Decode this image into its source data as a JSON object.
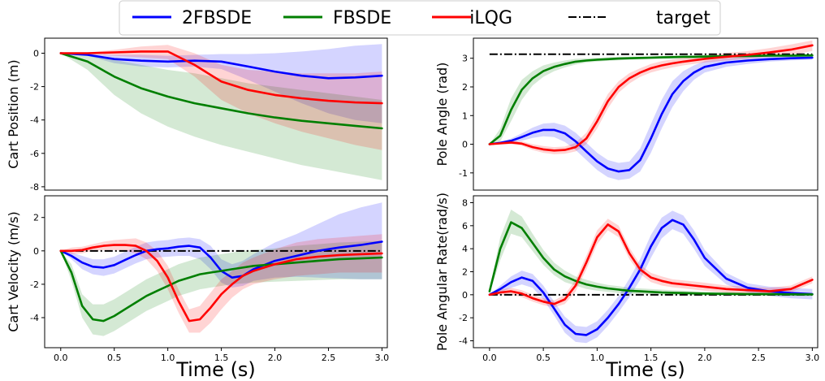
{
  "legend": {
    "placement": "top-center",
    "entries": [
      {
        "label": "2FBSDE",
        "color": "#0000ff",
        "dash": "solid"
      },
      {
        "label": "FBSDE",
        "color": "#007f00",
        "dash": "solid"
      },
      {
        "label": "iLQG",
        "color": "#ff0000",
        "dash": "solid"
      },
      {
        "label": "target",
        "color": "#000000",
        "dash": "dashdot"
      }
    ]
  },
  "colors": {
    "2FBSDE": "#0000ff",
    "FBSDE": "#007f00",
    "iLQG": "#ff0000",
    "target": "#000000"
  },
  "chart_data": [
    {
      "type": "line",
      "id": "cart_position",
      "ylabel": "Cart Position (m)",
      "xlabel": "",
      "xlim": [
        -0.15,
        3.05
      ],
      "ylim": [
        -8.2,
        0.9
      ],
      "xticks": [],
      "yticks": [
        0,
        -2,
        -4,
        -6,
        -8
      ],
      "x": [
        0,
        0.25,
        0.5,
        0.75,
        1.0,
        1.25,
        1.5,
        1.75,
        2.0,
        2.25,
        2.5,
        2.75,
        3.0
      ],
      "series": [
        {
          "name": "2FBSDE",
          "values": [
            0,
            -0.1,
            -0.35,
            -0.45,
            -0.5,
            -0.45,
            -0.5,
            -0.8,
            -1.1,
            -1.35,
            -1.5,
            -1.45,
            -1.35
          ],
          "lower": [
            0,
            -0.15,
            -0.6,
            -0.8,
            -0.85,
            -0.8,
            -0.95,
            -1.6,
            -2.3,
            -3.0,
            -3.6,
            -4.0,
            -4.2
          ],
          "upper": [
            0,
            -0.05,
            -0.1,
            -0.1,
            -0.15,
            -0.1,
            -0.05,
            -0.05,
            0,
            0.1,
            0.25,
            0.45,
            0.55
          ]
        },
        {
          "name": "FBSDE",
          "values": [
            0,
            -0.5,
            -1.4,
            -2.1,
            -2.6,
            -3.0,
            -3.3,
            -3.6,
            -3.85,
            -4.05,
            -4.2,
            -4.35,
            -4.5
          ],
          "lower": [
            0,
            -1.0,
            -2.5,
            -3.6,
            -4.4,
            -5.0,
            -5.5,
            -5.9,
            -6.3,
            -6.7,
            -7.0,
            -7.3,
            -7.6
          ],
          "upper": [
            0,
            -0.1,
            -0.4,
            -0.7,
            -1.0,
            -1.2,
            -1.5,
            -1.8,
            -2.0,
            -2.2,
            -2.4,
            -2.6,
            -2.8
          ]
        },
        {
          "name": "iLQG",
          "values": [
            0,
            0,
            0.05,
            0.1,
            0.1,
            -0.7,
            -1.7,
            -2.2,
            -2.5,
            -2.7,
            -2.85,
            -2.95,
            -3.0
          ],
          "lower": [
            0,
            -0.05,
            -0.15,
            -0.25,
            -0.35,
            -1.4,
            -2.8,
            -3.6,
            -4.2,
            -4.7,
            -5.1,
            -5.5,
            -5.8
          ],
          "upper": [
            0,
            0.05,
            0.2,
            0.4,
            0.5,
            0.0,
            -0.7,
            -1.0,
            -1.1,
            -1.2,
            -1.2,
            -1.2,
            -1.1
          ]
        }
      ],
      "hline": null
    },
    {
      "type": "line",
      "id": "pole_angle",
      "ylabel": "Pole Angle (rad)",
      "xlabel": "",
      "xlim": [
        -0.15,
        3.05
      ],
      "ylim": [
        -1.6,
        3.7
      ],
      "xticks": [],
      "yticks": [
        -1,
        0,
        1,
        2,
        3
      ],
      "x": [
        0,
        0.1,
        0.2,
        0.3,
        0.4,
        0.5,
        0.6,
        0.7,
        0.8,
        0.9,
        1.0,
        1.1,
        1.2,
        1.3,
        1.4,
        1.5,
        1.6,
        1.7,
        1.8,
        1.9,
        2.0,
        2.2,
        2.4,
        2.6,
        2.8,
        3.0
      ],
      "series": [
        {
          "name": "2FBSDE",
          "values": [
            0,
            0.05,
            0.12,
            0.25,
            0.4,
            0.5,
            0.5,
            0.38,
            0.1,
            -0.25,
            -0.6,
            -0.85,
            -0.95,
            -0.9,
            -0.55,
            0.2,
            1.05,
            1.75,
            2.2,
            2.5,
            2.7,
            2.85,
            2.92,
            2.97,
            3.0,
            3.02
          ],
          "lower": [
            0,
            0.02,
            0.05,
            0.12,
            0.22,
            0.28,
            0.25,
            0.08,
            -0.2,
            -0.55,
            -0.9,
            -1.15,
            -1.25,
            -1.2,
            -0.95,
            -0.3,
            0.55,
            1.3,
            1.85,
            2.25,
            2.5,
            2.7,
            2.8,
            2.88,
            2.92,
            2.95
          ],
          "upper": [
            0,
            0.08,
            0.2,
            0.38,
            0.58,
            0.72,
            0.75,
            0.65,
            0.4,
            0.05,
            -0.3,
            -0.55,
            -0.65,
            -0.6,
            -0.15,
            0.7,
            1.55,
            2.2,
            2.55,
            2.75,
            2.9,
            3.0,
            3.05,
            3.07,
            3.08,
            3.08
          ]
        },
        {
          "name": "FBSDE",
          "values": [
            0,
            0.3,
            1.2,
            1.9,
            2.3,
            2.55,
            2.7,
            2.8,
            2.88,
            2.92,
            2.95,
            2.97,
            2.99,
            3.0,
            3.01,
            3.02,
            3.03,
            3.04,
            3.05,
            3.05,
            3.06,
            3.07,
            3.08,
            3.09,
            3.09,
            3.1
          ],
          "lower": [
            0,
            0.1,
            0.8,
            1.55,
            2.05,
            2.35,
            2.55,
            2.68,
            2.78,
            2.85,
            2.88,
            2.91,
            2.93,
            2.95,
            2.96,
            2.97,
            2.98,
            2.99,
            3.0,
            3.0,
            3.01,
            3.02,
            3.03,
            3.04,
            3.04,
            3.05
          ],
          "upper": [
            0,
            0.55,
            1.6,
            2.25,
            2.55,
            2.75,
            2.85,
            2.92,
            2.98,
            3.0,
            3.02,
            3.03,
            3.05,
            3.05,
            3.06,
            3.07,
            3.08,
            3.09,
            3.1,
            3.1,
            3.11,
            3.12,
            3.13,
            3.14,
            3.14,
            3.15
          ]
        },
        {
          "name": "iLQG",
          "values": [
            0,
            0.03,
            0.06,
            0.02,
            -0.1,
            -0.18,
            -0.22,
            -0.2,
            -0.1,
            0.2,
            0.8,
            1.5,
            2.0,
            2.3,
            2.5,
            2.65,
            2.75,
            2.82,
            2.88,
            2.93,
            2.98,
            3.05,
            3.12,
            3.2,
            3.3,
            3.45
          ],
          "lower": [
            0,
            0.0,
            0.0,
            -0.05,
            -0.2,
            -0.3,
            -0.35,
            -0.33,
            -0.25,
            0.0,
            0.55,
            1.25,
            1.8,
            2.12,
            2.35,
            2.5,
            2.6,
            2.68,
            2.75,
            2.8,
            2.85,
            2.92,
            2.98,
            3.05,
            3.12,
            3.25
          ],
          "upper": [
            0,
            0.06,
            0.12,
            0.1,
            0.0,
            -0.06,
            -0.1,
            -0.08,
            0.05,
            0.4,
            1.05,
            1.75,
            2.2,
            2.48,
            2.65,
            2.8,
            2.9,
            2.96,
            3.01,
            3.06,
            3.1,
            3.18,
            3.25,
            3.35,
            3.48,
            3.62
          ]
        }
      ],
      "hline": {
        "name": "target",
        "y": 3.14159
      }
    },
    {
      "type": "line",
      "id": "cart_velocity",
      "ylabel": "Cart Velocity (m/s)",
      "xlabel": "Time (s)",
      "xlim": [
        -0.15,
        3.05
      ],
      "ylim": [
        -5.8,
        3.3
      ],
      "xticks": [
        0.0,
        0.5,
        1.0,
        1.5,
        2.0,
        2.5,
        3.0
      ],
      "yticks": [
        2,
        0,
        -2,
        -4
      ],
      "x": [
        0,
        0.1,
        0.2,
        0.3,
        0.4,
        0.5,
        0.6,
        0.7,
        0.8,
        0.9,
        1.0,
        1.1,
        1.2,
        1.3,
        1.4,
        1.5,
        1.6,
        1.7,
        1.8,
        2.0,
        2.2,
        2.4,
        2.6,
        2.8,
        3.0
      ],
      "series": [
        {
          "name": "2FBSDE",
          "values": [
            0,
            -0.3,
            -0.7,
            -0.95,
            -1.0,
            -0.85,
            -0.55,
            -0.25,
            0.0,
            0.1,
            0.15,
            0.25,
            0.3,
            0.2,
            -0.4,
            -1.2,
            -1.6,
            -1.5,
            -1.1,
            -0.6,
            -0.3,
            0.0,
            0.2,
            0.35,
            0.55
          ],
          "lower": [
            0,
            -0.5,
            -1.1,
            -1.4,
            -1.5,
            -1.35,
            -1.05,
            -0.75,
            -0.5,
            -0.4,
            -0.35,
            -0.3,
            -0.3,
            -0.5,
            -1.1,
            -1.9,
            -2.2,
            -2.1,
            -1.8,
            -1.6,
            -1.55,
            -1.6,
            -1.65,
            -1.7,
            -1.7
          ],
          "upper": [
            0,
            -0.1,
            -0.3,
            -0.5,
            -0.5,
            -0.35,
            -0.05,
            0.25,
            0.5,
            0.6,
            0.65,
            0.75,
            0.8,
            0.7,
            0.3,
            -0.5,
            -0.8,
            -0.6,
            -0.2,
            0.5,
            1.0,
            1.6,
            2.2,
            2.6,
            2.9
          ]
        },
        {
          "name": "FBSDE",
          "values": [
            0,
            -1.3,
            -3.3,
            -4.1,
            -4.2,
            -3.9,
            -3.5,
            -3.1,
            -2.7,
            -2.4,
            -2.1,
            -1.8,
            -1.6,
            -1.4,
            -1.3,
            -1.2,
            -1.1,
            -1.0,
            -0.9,
            -0.8,
            -0.7,
            -0.6,
            -0.5,
            -0.45,
            -0.4
          ],
          "lower": [
            0,
            -1.8,
            -4.0,
            -5.0,
            -5.1,
            -4.8,
            -4.4,
            -4.0,
            -3.6,
            -3.3,
            -3.0,
            -2.7,
            -2.5,
            -2.3,
            -2.2,
            -2.1,
            -2.0,
            -1.95,
            -1.9,
            -1.85,
            -1.8,
            -1.75,
            -1.7,
            -1.7,
            -1.7
          ],
          "upper": [
            0,
            -0.8,
            -2.6,
            -3.2,
            -3.2,
            -2.9,
            -2.5,
            -2.1,
            -1.7,
            -1.4,
            -1.1,
            -0.8,
            -0.6,
            -0.4,
            -0.3,
            -0.2,
            -0.1,
            0.0,
            0.05,
            0.15,
            0.3,
            0.4,
            0.5,
            0.55,
            0.6
          ]
        },
        {
          "name": "iLQG",
          "values": [
            0,
            0.0,
            0.05,
            0.2,
            0.3,
            0.35,
            0.35,
            0.3,
            0.0,
            -0.6,
            -1.6,
            -3.0,
            -4.2,
            -4.1,
            -3.4,
            -2.6,
            -2.0,
            -1.5,
            -1.2,
            -0.8,
            -0.5,
            -0.35,
            -0.25,
            -0.2,
            -0.15
          ],
          "lower": [
            0,
            -0.2,
            -0.15,
            0.0,
            0.05,
            0.05,
            0.0,
            -0.15,
            -0.5,
            -1.2,
            -2.3,
            -3.7,
            -4.9,
            -4.9,
            -4.3,
            -3.5,
            -2.8,
            -2.3,
            -2.0,
            -1.7,
            -1.5,
            -1.4,
            -1.3,
            -1.3,
            -1.3
          ],
          "upper": [
            0,
            0.2,
            0.25,
            0.4,
            0.55,
            0.65,
            0.7,
            0.75,
            0.5,
            0.0,
            -0.9,
            -2.3,
            -3.5,
            -3.3,
            -2.5,
            -1.7,
            -1.2,
            -0.7,
            -0.4,
            0.1,
            0.5,
            0.7,
            0.8,
            0.9,
            1.0
          ]
        }
      ],
      "hline": {
        "name": "target",
        "y": 0
      }
    },
    {
      "type": "line",
      "id": "pole_angular_rate",
      "ylabel": "Pole Angular Rate(rad/s)",
      "xlabel": "Time (s)",
      "xlim": [
        -0.15,
        3.05
      ],
      "ylim": [
        -4.6,
        8.6
      ],
      "xticks": [
        0.0,
        0.5,
        1.0,
        1.5,
        2.0,
        2.5,
        3.0
      ],
      "yticks": [
        8,
        6,
        4,
        2,
        0,
        -2,
        -4
      ],
      "x": [
        0,
        0.1,
        0.2,
        0.3,
        0.4,
        0.5,
        0.6,
        0.7,
        0.8,
        0.9,
        1.0,
        1.1,
        1.2,
        1.3,
        1.4,
        1.5,
        1.6,
        1.7,
        1.8,
        1.9,
        2.0,
        2.2,
        2.4,
        2.6,
        2.8,
        3.0
      ],
      "series": [
        {
          "name": "2FBSDE",
          "values": [
            0,
            0.5,
            1.1,
            1.5,
            1.2,
            0.2,
            -1.2,
            -2.6,
            -3.4,
            -3.5,
            -3.0,
            -2.0,
            -0.8,
            0.6,
            2.2,
            4.2,
            5.8,
            6.5,
            6.1,
            4.8,
            3.2,
            1.4,
            0.6,
            0.3,
            0.15,
            0.05
          ],
          "lower": [
            0,
            0.2,
            0.6,
            0.9,
            0.6,
            -0.4,
            -1.8,
            -3.3,
            -4.1,
            -4.2,
            -3.7,
            -2.7,
            -1.5,
            -0.2,
            1.3,
            3.2,
            4.9,
            5.7,
            5.3,
            4.0,
            2.5,
            0.9,
            0.2,
            -0.1,
            -0.3,
            -0.4
          ],
          "upper": [
            0,
            0.8,
            1.6,
            2.1,
            1.8,
            0.8,
            -0.6,
            -1.9,
            -2.7,
            -2.8,
            -2.3,
            -1.3,
            -0.1,
            1.4,
            3.1,
            5.2,
            6.7,
            7.3,
            6.9,
            5.6,
            3.9,
            1.9,
            1.0,
            0.7,
            0.6,
            0.5
          ]
        },
        {
          "name": "FBSDE",
          "values": [
            0.3,
            4.0,
            6.3,
            5.8,
            4.5,
            3.2,
            2.2,
            1.6,
            1.2,
            0.9,
            0.7,
            0.55,
            0.45,
            0.35,
            0.3,
            0.25,
            0.2,
            0.17,
            0.15,
            0.12,
            0.1,
            0.08,
            0.06,
            0.05,
            0.04,
            0.03
          ],
          "lower": [
            0.1,
            3.0,
            5.3,
            5.0,
            3.8,
            2.6,
            1.7,
            1.1,
            0.8,
            0.5,
            0.35,
            0.25,
            0.15,
            0.1,
            0.05,
            0.0,
            -0.02,
            -0.05,
            -0.05,
            -0.06,
            -0.07,
            -0.08,
            -0.1,
            -0.1,
            -0.1,
            -0.1
          ],
          "upper": [
            0.5,
            5.0,
            7.4,
            6.8,
            5.3,
            3.9,
            2.8,
            2.1,
            1.6,
            1.3,
            1.05,
            0.85,
            0.75,
            0.6,
            0.55,
            0.5,
            0.45,
            0.4,
            0.35,
            0.3,
            0.27,
            0.24,
            0.22,
            0.2,
            0.18,
            0.16
          ]
        },
        {
          "name": "iLQG",
          "values": [
            0,
            0.2,
            0.3,
            0.1,
            -0.3,
            -0.6,
            -0.8,
            -0.4,
            0.8,
            2.8,
            5.0,
            6.1,
            5.5,
            3.6,
            2.2,
            1.5,
            1.2,
            1.0,
            0.9,
            0.8,
            0.7,
            0.5,
            0.4,
            0.3,
            0.5,
            1.3
          ],
          "lower": [
            0,
            -0.05,
            0.0,
            -0.2,
            -0.6,
            -0.9,
            -1.1,
            -0.8,
            0.3,
            2.2,
            4.4,
            5.6,
            5.0,
            3.1,
            1.8,
            1.1,
            0.8,
            0.65,
            0.55,
            0.45,
            0.35,
            0.2,
            0.1,
            0.05,
            0.2,
            1.0
          ],
          "upper": [
            0,
            0.45,
            0.6,
            0.4,
            0.0,
            -0.3,
            -0.5,
            0.0,
            1.3,
            3.4,
            5.6,
            6.6,
            6.0,
            4.1,
            2.6,
            1.9,
            1.6,
            1.35,
            1.25,
            1.15,
            1.05,
            0.8,
            0.7,
            0.6,
            0.8,
            1.6
          ]
        }
      ],
      "hline": {
        "name": "target",
        "y": 0
      }
    }
  ]
}
